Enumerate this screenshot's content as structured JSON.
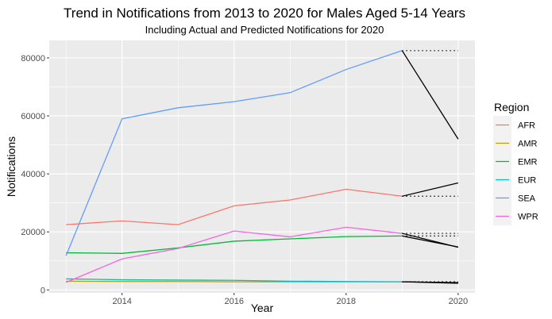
{
  "chart_data": {
    "type": "line",
    "title": "Trend in Notifications from 2013 to 2020 for Males Aged 5-14 Years",
    "subtitle": "Including Actual and Predicted Notifications for 2020",
    "xlabel": "Year",
    "ylabel": "Notifications",
    "xlim": [
      2012.7,
      2020.3
    ],
    "ylim": [
      -1000,
      86000
    ],
    "x_ticks": [
      2014,
      2016,
      2018,
      2020
    ],
    "y_ticks": [
      0,
      20000,
      40000,
      60000,
      80000
    ],
    "x": [
      2013,
      2014,
      2015,
      2016,
      2017,
      2018,
      2019
    ],
    "grid": true,
    "legend_title": "Region",
    "legend_position": "right",
    "series": [
      {
        "name": "AFR",
        "color": "#F8766D",
        "values": [
          22500,
          23800,
          22500,
          29000,
          31000,
          34700,
          32300
        ]
      },
      {
        "name": "AMR",
        "color": "#B79F00",
        "values": [
          3000,
          2900,
          2900,
          2800,
          2800,
          2800,
          2800
        ]
      },
      {
        "name": "EMR",
        "color": "#00BA38",
        "values": [
          12800,
          12600,
          14500,
          16800,
          17600,
          18400,
          18600
        ]
      },
      {
        "name": "EUR",
        "color": "#00BFC4",
        "values": [
          3800,
          3500,
          3400,
          3300,
          3000,
          2900,
          2800
        ]
      },
      {
        "name": "SEA",
        "color": "#619CFF",
        "values": [
          11800,
          59000,
          62800,
          64900,
          68000,
          76000,
          82500
        ]
      },
      {
        "name": "WPR",
        "color": "#F564E3",
        "values": [
          2600,
          10700,
          14300,
          20300,
          18300,
          21600,
          19500
        ]
      }
    ],
    "predicted": {
      "color": "#000000",
      "from_x": 2019,
      "to_x": 2020,
      "lines": [
        {
          "region": "AFR",
          "y2019": 32300,
          "y2020": 36900
        },
        {
          "region": "AMR",
          "y2019": 2800,
          "y2020": 2500
        },
        {
          "region": "EMR",
          "y2019": 18600,
          "y2020": 14800
        },
        {
          "region": "EUR",
          "y2019": 2800,
          "y2020": 2300
        },
        {
          "region": "SEA",
          "y2019": 82500,
          "y2020": 52000
        },
        {
          "region": "WPR",
          "y2019": 19500,
          "y2020": 14700
        }
      ],
      "dotted_levels": [
        82500,
        32300,
        19500,
        18600,
        2800,
        2800
      ]
    }
  }
}
